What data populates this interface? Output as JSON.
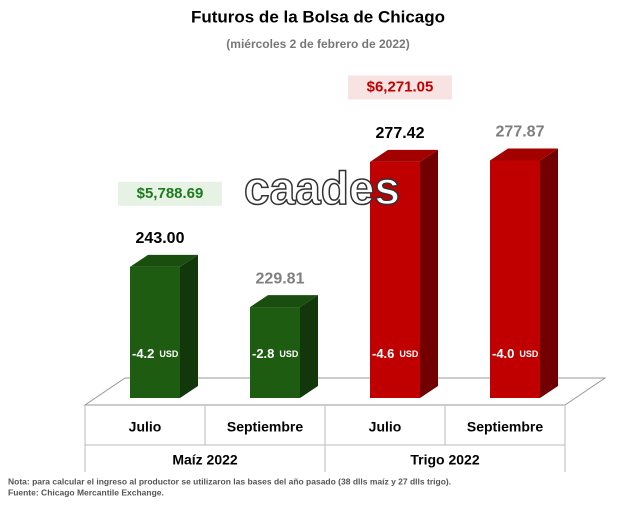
{
  "chart_data": {
    "type": "bar",
    "title": "Futuros de la Bolsa de Chicago",
    "subtitle": "(miércoles 2 de febrero de 2022)",
    "ylim": [
      200,
      290
    ],
    "watermark": "caades",
    "change_unit": "USD",
    "label_colors": [
      "#000000",
      "#7f7f7f"
    ],
    "groups": [
      {
        "name": "Maíz 2022",
        "color": "#1e5c12",
        "price": 5788.69,
        "price_label": "$5,788.69",
        "price_color": "#1e7a1e",
        "price_bg": "#e6f2e3",
        "categories": [
          "Julio",
          "Septiembre"
        ],
        "values": [
          243.0,
          229.81
        ],
        "value_labels": [
          "243.00",
          "229.81"
        ],
        "changes": [
          -4.2,
          -2.8
        ],
        "change_labels": [
          "-4.2",
          "-2.8"
        ]
      },
      {
        "name": "Trigo 2022",
        "color": "#c00000",
        "price": 6271.05,
        "price_label": "$6,271.05",
        "price_color": "#c00000",
        "price_bg": "#f8e3e3",
        "categories": [
          "Julio",
          "Septiembre"
        ],
        "values": [
          277.42,
          277.87
        ],
        "value_labels": [
          "277.42",
          "277.87"
        ],
        "changes": [
          -4.6,
          -4.0
        ],
        "change_labels": [
          "-4.6",
          "-4.0"
        ]
      }
    ],
    "notes": [
      "Nota: para calcular el ingreso al productor se utilizaron las bases del año pasado (38 dlls maíz y 27 dlls trigo).",
      "Fuente: Chicago Mercantile Exchange."
    ]
  }
}
